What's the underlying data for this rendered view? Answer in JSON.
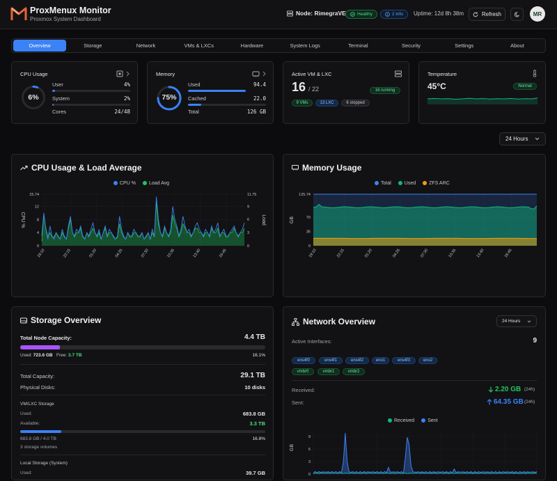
{
  "app": {
    "title": "ProxMenux Monitor",
    "subtitle": "Proxmox System Dashboard"
  },
  "header": {
    "node_label": "Node: RimegraVE",
    "healthy_badge": "Healthy",
    "info_badge": "2 info",
    "uptime": "Uptime: 12d 8h 38m",
    "refresh_label": "Refresh",
    "avatar_text": "MR"
  },
  "tabs": [
    {
      "label": "Overview",
      "active": true
    },
    {
      "label": "Storage"
    },
    {
      "label": "Network"
    },
    {
      "label": "VMs & LXCs"
    },
    {
      "label": "Hardware"
    },
    {
      "label": "System Logs"
    },
    {
      "label": "Terminal"
    },
    {
      "label": "Security"
    },
    {
      "label": "Settings"
    },
    {
      "label": "About"
    }
  ],
  "cpu_card": {
    "title": "CPU Usage",
    "percent": "6%",
    "user_label": "User",
    "user_value": "4%",
    "user_fraction": 0.04,
    "system_label": "System",
    "system_value": "2%",
    "system_fraction": 0.02,
    "cores_label": "Cores",
    "cores_value": "24/48",
    "ring_fraction": 0.06
  },
  "memory_card": {
    "title": "Memory",
    "percent": "75%",
    "used_label": "Used",
    "used_value": "94.4",
    "used_fraction": 0.75,
    "cached_label": "Cached",
    "cached_value": "22.0",
    "cached_fraction": 0.17,
    "total_label": "Total",
    "total_value": "126 GB",
    "ring_fraction": 0.75
  },
  "vm_card": {
    "title": "Active VM & LXC",
    "active": "16",
    "total": "/ 22",
    "running_badge": "16 running",
    "vms_chip": "9 VMs",
    "lxc_chip": "13 LXC",
    "stopped_chip": "6 stopped"
  },
  "temp_card": {
    "title": "Temperature",
    "value": "45°C",
    "status": "Normal"
  },
  "time_range": "24 Hours",
  "cpu_chart_title": "CPU Usage & Load Average",
  "memory_chart_title": "Memory Usage",
  "storage": {
    "title": "Storage Overview",
    "node_capacity_label": "Total Node Capacity:",
    "node_capacity_value": "4.4 TB",
    "used_label": "Used:",
    "used_value": "723.6 GB",
    "free_label": "Free:",
    "free_value": "3.7 TB",
    "used_percent": "16.1%",
    "used_fraction": 0.161,
    "total_capacity_label": "Total Capacity:",
    "total_capacity_value": "29.1 TB",
    "physical_disks_label": "Physical Disks:",
    "physical_disks_value": "10 disks",
    "vmlxc_title": "VM/LXC Storage",
    "vmlxc_used_label": "Used:",
    "vmlxc_used_value": "683.8 GB",
    "vmlxc_available_label": "Available:",
    "vmlxc_available_value": "3.3 TB",
    "vmlxc_summary": "683.8 GB / 4.0 TB",
    "vmlxc_percent": "16.8%",
    "vmlxc_fraction": 0.168,
    "vmlxc_volumes": "3 storage volumes",
    "local_title": "Local Storage (System)",
    "local_used_label": "Used:",
    "local_used_value": "39.7 GB"
  },
  "network": {
    "title": "Network Overview",
    "range": "24 Hours",
    "active_interfaces_label": "Active Interfaces:",
    "active_interfaces_value": "9",
    "interfaces": [
      "ens4f0",
      "ens4f1",
      "ens4f2",
      "eno1",
      "ens4f3",
      "eno2"
    ],
    "bridges": [
      "vmbr0",
      "vmbr1",
      "vmbr2"
    ],
    "received_label": "Received:",
    "received_value": "2.20 GB",
    "received_period": "(24h)",
    "sent_label": "Sent:",
    "sent_value": "64.35 GB",
    "sent_period": "(24h)"
  },
  "chart_data": [
    {
      "type": "line",
      "title": "CPU Usage & Load Average",
      "ylabel": "CPU %",
      "y2label": "Load",
      "series": [
        {
          "name": "CPU %",
          "color": "#3b82f6"
        },
        {
          "name": "Load Avg",
          "color": "#22c55e"
        }
      ],
      "x_ticks": [
        "19:10",
        "22:15",
        "01:20",
        "04:25",
        "07:30",
        "10:35",
        "13:40",
        "16:45"
      ],
      "y_ticks": [
        0,
        4,
        8,
        12,
        15.74
      ],
      "ylim": [
        0,
        15.74
      ],
      "y2_ticks": [
        0,
        3,
        6,
        9,
        11.75
      ],
      "y2lim": [
        0,
        11.75
      ],
      "cpu_values": [
        3,
        10,
        5,
        2,
        6,
        3,
        2,
        4,
        3,
        2,
        5,
        3,
        2,
        6,
        9,
        4,
        3,
        5,
        4,
        6,
        3,
        2,
        4,
        3,
        5,
        7,
        4,
        3,
        5,
        2,
        4,
        6,
        3,
        5,
        4,
        3,
        2,
        3,
        9,
        5,
        3,
        2,
        4,
        3,
        3,
        5,
        4,
        3,
        3,
        4,
        2,
        3,
        4,
        2,
        5,
        3,
        15,
        8,
        4,
        3,
        6,
        4,
        3,
        5,
        12,
        8,
        6,
        3,
        5,
        9,
        6,
        4,
        5,
        3,
        4,
        6,
        7,
        5,
        4,
        3,
        5,
        4,
        3,
        6,
        4,
        5,
        7,
        3,
        4,
        5,
        3,
        3,
        4,
        5,
        6,
        4,
        3,
        4,
        5,
        7
      ],
      "load_values": [
        1,
        7,
        4,
        2,
        3,
        2,
        2,
        3,
        2,
        1.5,
        3,
        2,
        1.5,
        4,
        6,
        3,
        2,
        3,
        3,
        4,
        2,
        1.5,
        3,
        2,
        3,
        4,
        3,
        2,
        3,
        1.5,
        3,
        4,
        2,
        3,
        3,
        2,
        1.5,
        2,
        5,
        3,
        2,
        1.5,
        3,
        2,
        2,
        3,
        3,
        2,
        2,
        3,
        1.5,
        2,
        3,
        1.5,
        3,
        2,
        10,
        5,
        3,
        2,
        4,
        3,
        2,
        3,
        7,
        5,
        4,
        2,
        3,
        5,
        4,
        3,
        3,
        2,
        3,
        4,
        4,
        3,
        3,
        2,
        3,
        3,
        2,
        4,
        3,
        3,
        4,
        2,
        3,
        3,
        2,
        2,
        3,
        3,
        4,
        3,
        2,
        3,
        3,
        4
      ]
    },
    {
      "type": "area",
      "title": "Memory Usage",
      "ylabel": "GB",
      "series": [
        {
          "name": "Total",
          "color": "#3b82f6",
          "value": 125.74
        },
        {
          "name": "Used",
          "color": "#10b981",
          "approx_value": 94
        },
        {
          "name": "ZFS ARC",
          "color": "#f59e0b",
          "approx_value": 18
        }
      ],
      "x_ticks": [
        "19:10",
        "22:15",
        "01:20",
        "04:25",
        "07:30",
        "10:35",
        "13:40",
        "16:45"
      ],
      "y_ticks": [
        0,
        35,
        70,
        125.74
      ],
      "ylim": [
        0,
        125.74
      ]
    },
    {
      "type": "line",
      "title": "Network Overview",
      "ylabel": "GB",
      "series": [
        {
          "name": "Received",
          "color": "#10b981"
        },
        {
          "name": "Sent",
          "color": "#3b82f6"
        }
      ],
      "y_ticks": [
        0,
        3,
        6,
        9
      ],
      "ylim": [
        0,
        10
      ]
    }
  ]
}
